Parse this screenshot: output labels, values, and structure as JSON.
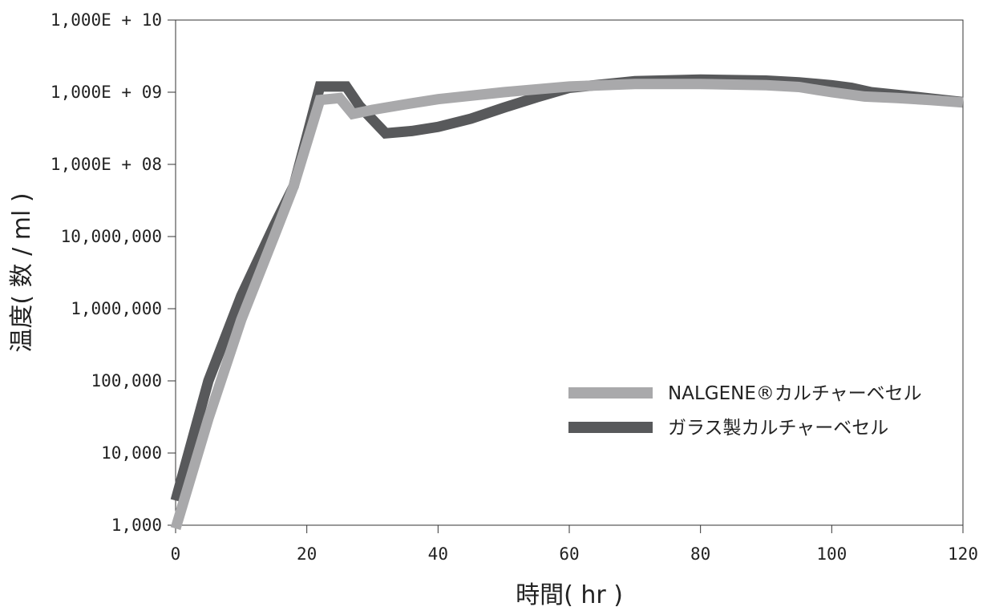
{
  "chart_data": {
    "type": "line",
    "title": "",
    "xlabel": "時間( hr )",
    "ylabel": "温度( 数 / ml )",
    "xlim": [
      0,
      120
    ],
    "ylim": [
      1000,
      10000000000
    ],
    "yscale": "log",
    "grid": false,
    "legend_position": "center-right",
    "x_ticks": [
      0,
      20,
      40,
      60,
      80,
      100,
      120
    ],
    "x_tick_labels": [
      "0",
      "20",
      "40",
      "60",
      "80",
      "100",
      "120"
    ],
    "y_ticks": [
      1000,
      10000,
      100000,
      1000000,
      10000000,
      100000000,
      1000000000,
      10000000000
    ],
    "y_tick_labels": [
      "1,000",
      "10,000",
      "100,000",
      "1,000,000",
      "10,000,000",
      "1,000E + 08",
      "1,000E + 09",
      "1,000E + 10"
    ],
    "series": [
      {
        "name": "NALGENE®カルチャーベセル",
        "color": "#a9a9ab",
        "x": [
          0,
          5,
          10,
          15,
          18,
          22,
          25,
          27,
          30,
          35,
          40,
          50,
          60,
          70,
          80,
          90,
          95,
          100,
          105,
          110,
          115,
          120
        ],
        "y": [
          900,
          30000,
          700000,
          10000000,
          50000000,
          780000000,
          830000000,
          500000000,
          570000000,
          680000000,
          800000000,
          1000000000,
          1200000000,
          1300000000,
          1300000000,
          1250000000,
          1180000000,
          1000000000,
          870000000,
          830000000,
          780000000,
          720000000
        ]
      },
      {
        "name": "ガラス製カルチャーベセル",
        "color": "#58595b",
        "x": [
          0,
          5,
          10,
          15,
          18,
          22,
          26,
          28,
          32,
          36,
          40,
          45,
          50,
          55,
          60,
          70,
          80,
          90,
          95,
          100,
          103,
          106,
          110,
          115,
          120
        ],
        "y": [
          2200,
          100000,
          1500000,
          14000000,
          50000000,
          1200000000,
          1200000000,
          650000000,
          270000000,
          290000000,
          330000000,
          430000000,
          610000000,
          850000000,
          1150000000,
          1420000000,
          1500000000,
          1450000000,
          1370000000,
          1250000000,
          1150000000,
          1000000000,
          920000000,
          820000000,
          730000000
        ]
      }
    ]
  }
}
